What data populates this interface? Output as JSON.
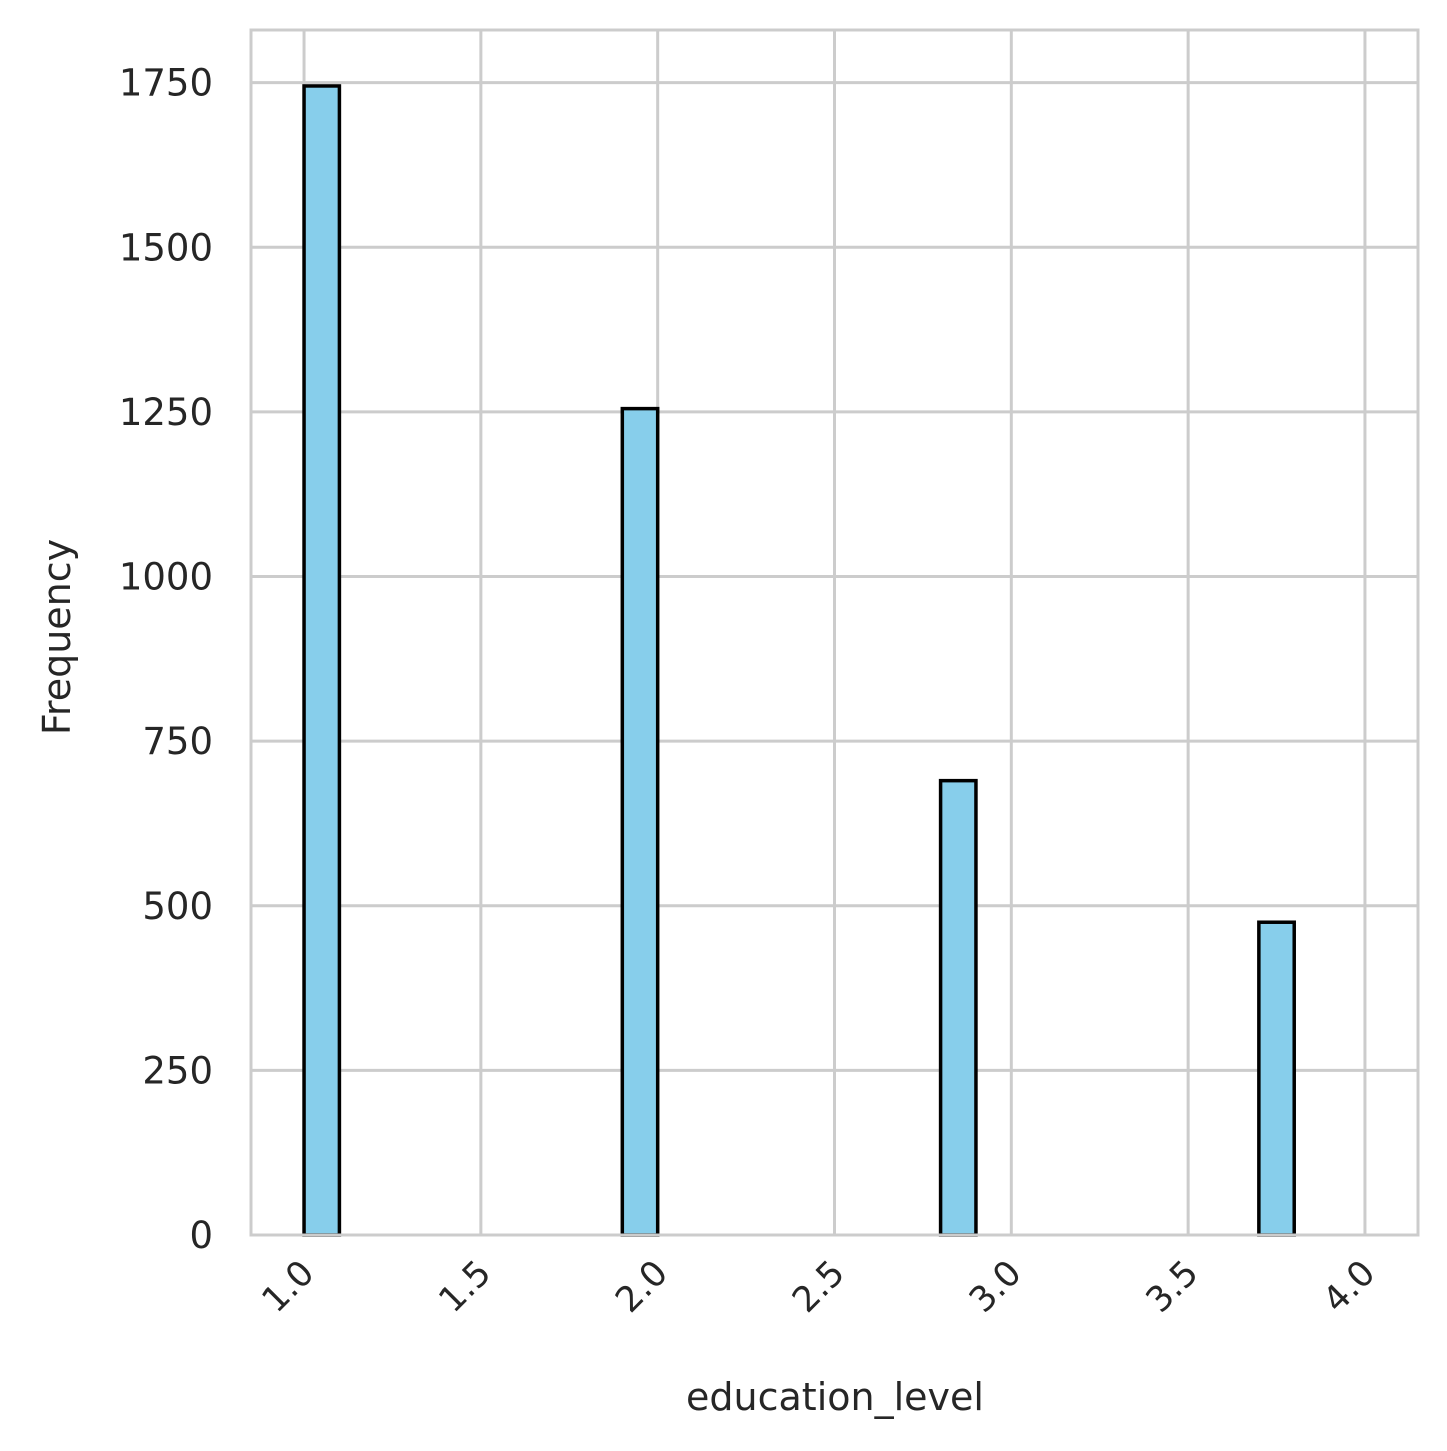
{
  "chart_data": {
    "type": "bar",
    "title": "",
    "xlabel": "education_level",
    "ylabel": "Frequency",
    "xlim": [
      0.85,
      4.15
    ],
    "ylim": [
      0,
      1830
    ],
    "x_ticks": [
      "1.0",
      "1.5",
      "2.0",
      "2.5",
      "3.0",
      "3.5",
      "4.0"
    ],
    "y_ticks": [
      "0",
      "250",
      "500",
      "750",
      "1000",
      "1250",
      "1500",
      "1750"
    ],
    "bin_width": 0.1,
    "bins": [
      {
        "start": 1.0,
        "end": 1.1,
        "value": 1745
      },
      {
        "start": 1.9,
        "end": 2.0,
        "value": 1255
      },
      {
        "start": 2.8,
        "end": 2.9,
        "value": 690
      },
      {
        "start": 3.7,
        "end": 3.8,
        "value": 475
      }
    ],
    "grid": true,
    "legend": "none",
    "bar_color": "#87ceeb",
    "edge_color": "#000000",
    "grid_color": "#cccccc"
  }
}
